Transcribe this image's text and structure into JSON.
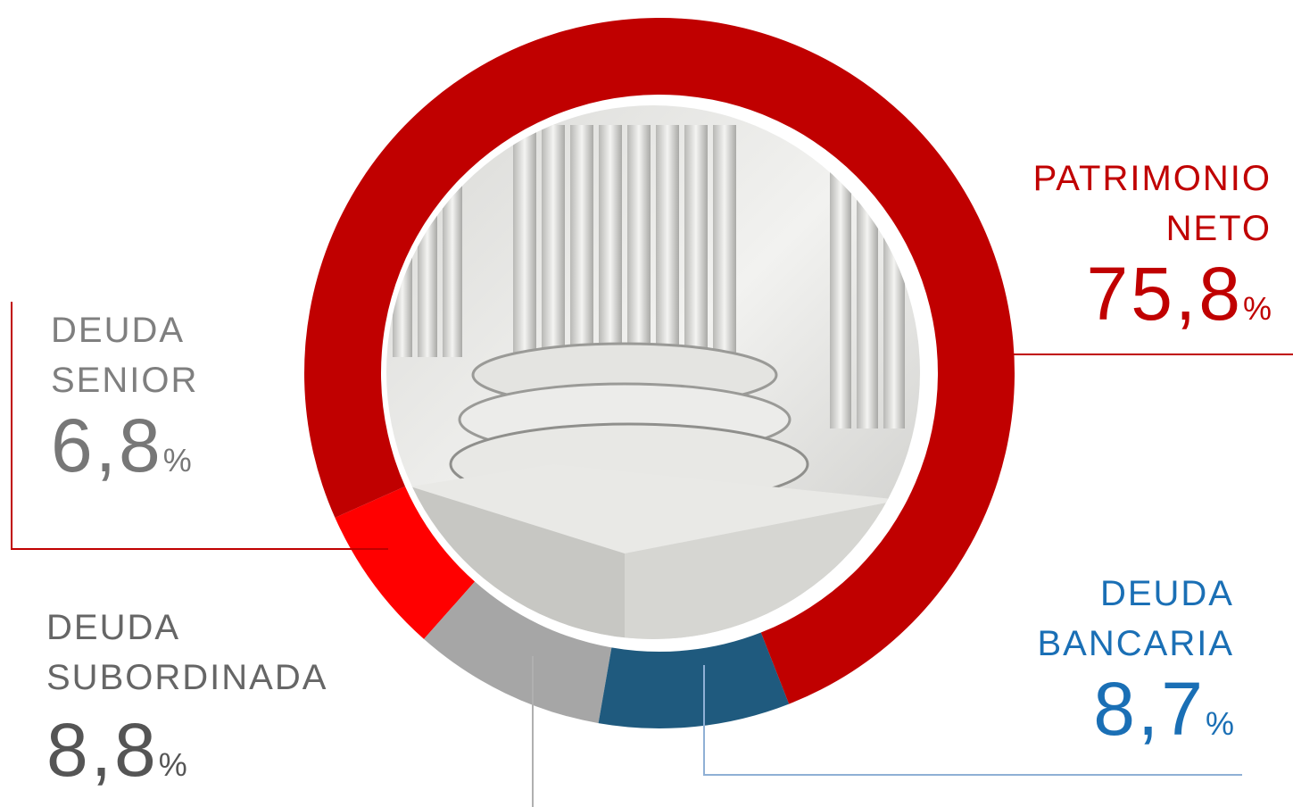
{
  "chart_data": {
    "type": "pie",
    "categories": [
      "PATRIMONIO NETO",
      "DEUDA BANCARIA",
      "DEUDA SUBORDINADA",
      "DEUDA SENIOR"
    ],
    "values": [
      75.8,
      8.7,
      8.8,
      6.8
    ],
    "value_labels": [
      "75,8",
      "8,7",
      "8,8",
      "6,8"
    ],
    "unit": "%",
    "colors": [
      "#c00000",
      "#1f5a7e",
      "#a6a6a6",
      "#ff0000"
    ]
  }
}
